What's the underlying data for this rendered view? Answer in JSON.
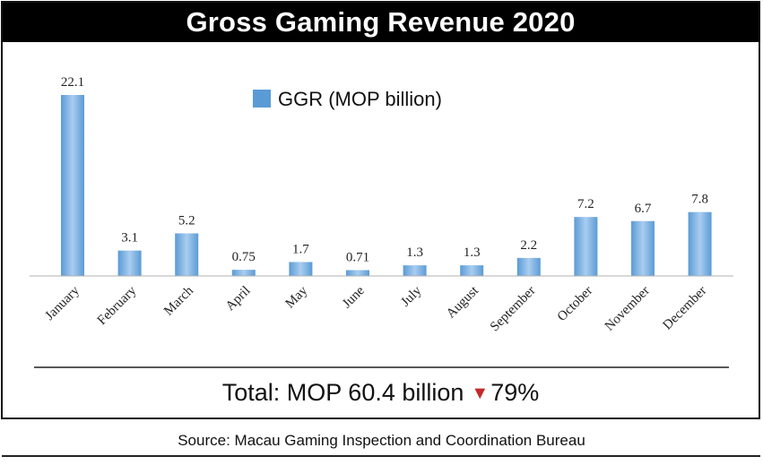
{
  "colors": {
    "bar": "#5b9bd5",
    "bar_light": "#a9cdf0",
    "accent_down": "#c62828",
    "title_bg": "#000000"
  },
  "chart_data": {
    "type": "bar",
    "title": "Gross Gaming Revenue  2020",
    "legend": "GGR (MOP billion)",
    "legend_position": "top-center",
    "categories": [
      "January",
      "February",
      "March",
      "April",
      "May",
      "June",
      "July",
      "August",
      "September",
      "October",
      "November",
      "December"
    ],
    "series": [
      {
        "name": "GGR (MOP billion)",
        "values": [
          22.1,
          3.1,
          5.2,
          0.75,
          1.7,
          0.71,
          1.3,
          1.3,
          2.2,
          7.2,
          6.7,
          7.8
        ],
        "labels": [
          "22.1",
          "3.1",
          "5.2",
          "0.75",
          "1.7",
          "0.71",
          "1.3",
          "1.3",
          "2.2",
          "7.2",
          "6.7",
          "7.8"
        ]
      }
    ],
    "ylim": [
      0,
      22.1
    ],
    "xlabel": "",
    "ylabel": "",
    "grid": false
  },
  "summary": {
    "total_text": "Total: MOP 60.4 billion",
    "arrow": "▼",
    "change": "79%"
  },
  "source": "Source: Macau Gaming Inspection and Coordination Bureau"
}
